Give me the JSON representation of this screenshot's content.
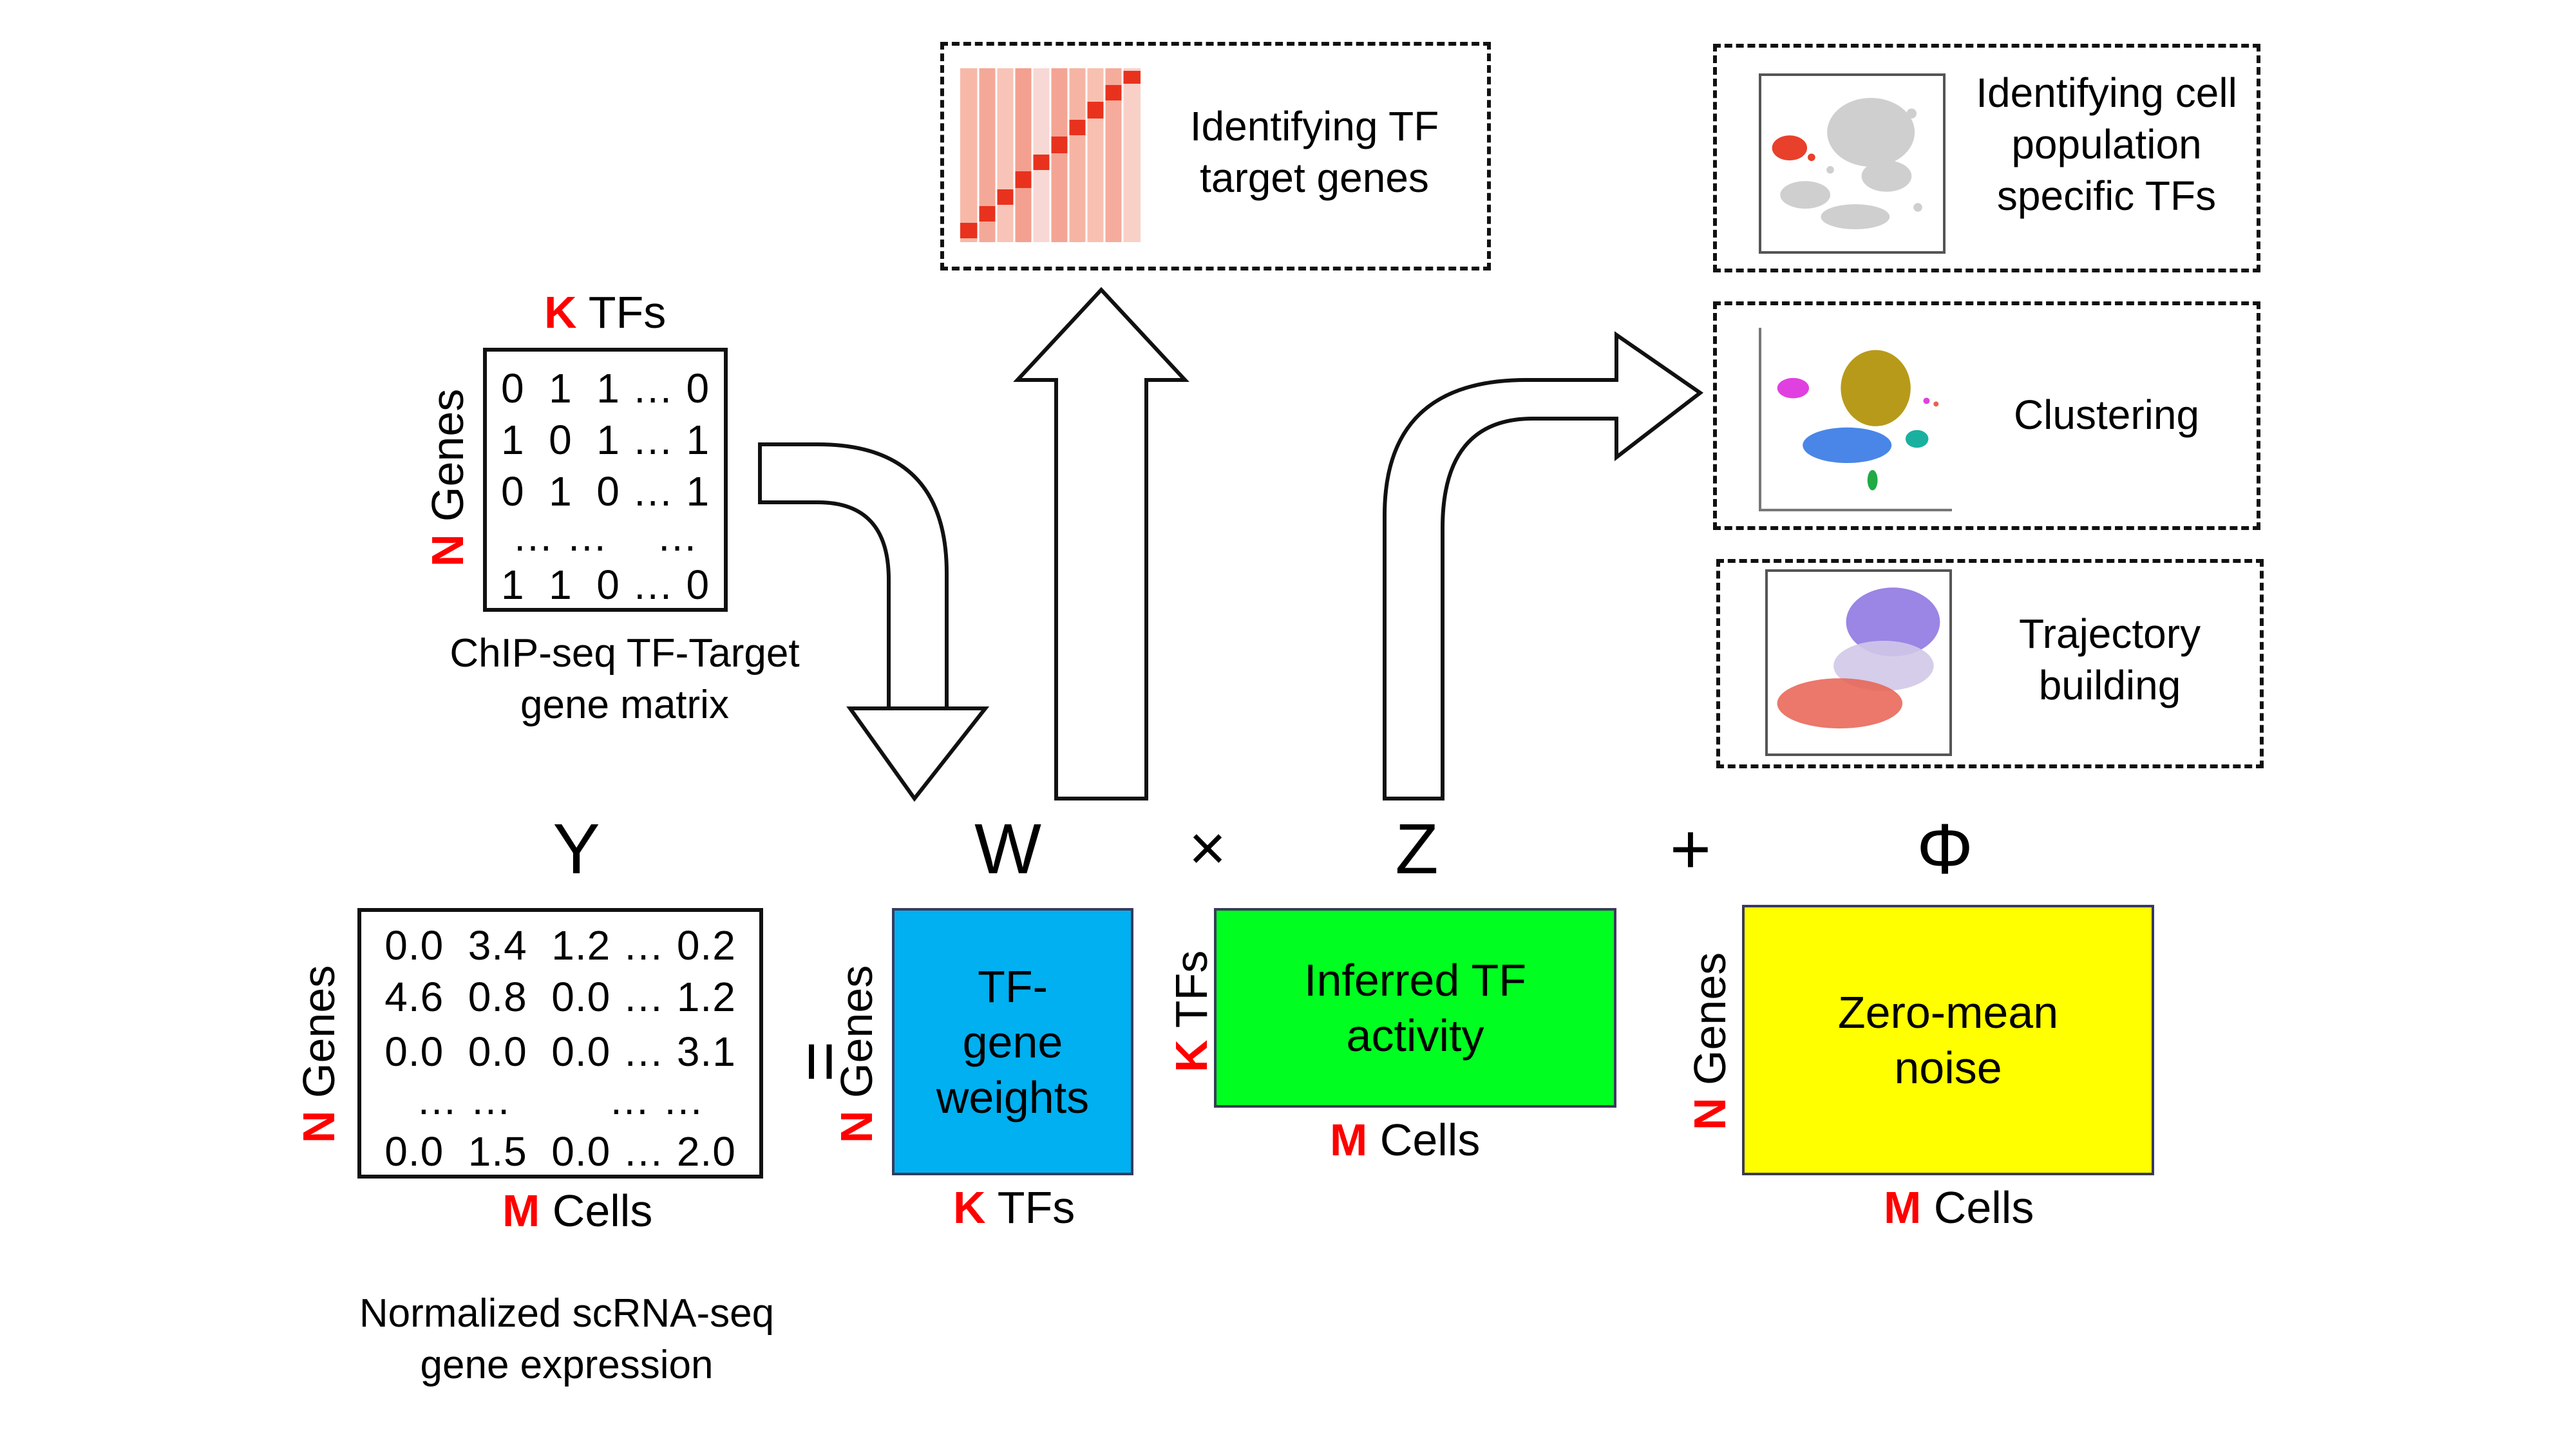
{
  "chip": {
    "top_k": "K",
    "top_tfs": "TFs",
    "side_n": "N",
    "side_genes": "Genes",
    "rows": [
      "0  1  1 … 0",
      "1  0  1 … 1",
      "0  1  0 … 1",
      "… …    …",
      "1  1  0 … 0"
    ],
    "caption_line1": "ChIP-seq TF-Target",
    "caption_line2": "gene matrix"
  },
  "equation": {
    "y": "Y",
    "w": "W",
    "times": "×",
    "z": "Z",
    "plus": "+",
    "phi": "Φ",
    "equals": "="
  },
  "y_matrix": {
    "rows": [
      "0.0  3.4  1.2 … 0.2",
      "4.6  0.8  0.0 … 1.2",
      "0.0  0.0  0.0 … 3.1",
      "… …        … …",
      "0.0  1.5  0.0 … 2.0"
    ],
    "side_n": "N",
    "side_genes": "Genes",
    "bottom_m": "M",
    "bottom_cells": "Cells",
    "caption_line1": "Normalized scRNA-seq",
    "caption_line2": "gene expression"
  },
  "w_box": {
    "line1": "TF-",
    "line2": "gene",
    "line3": "weights",
    "side_n": "N",
    "side_genes": "Genes",
    "bottom_k": "K",
    "bottom_tfs": "TFs",
    "color": "#00b0f0"
  },
  "z_box": {
    "line1": "Inferred TF",
    "line2": "activity",
    "side_k": "K",
    "side_tfs": "TFs",
    "bottom_m": "M",
    "bottom_cells": "Cells",
    "color": "#00ff21"
  },
  "phi_box": {
    "line1": "Zero-mean",
    "line2": "noise",
    "side_n": "N",
    "side_genes": "Genes",
    "bottom_m": "M",
    "bottom_cells": "Cells",
    "color": "#ffff00"
  },
  "panels": {
    "target_line1": "Identifying TF",
    "target_line2": "target genes",
    "population_line1": "Identifying cell",
    "population_line2": "population",
    "population_line3": "specific TFs",
    "clustering": "Clustering",
    "trajectory_line1": "Trajectory",
    "trajectory_line2": "building"
  },
  "colors": {
    "accent_red": "#ff0000",
    "heatmap_red": "#e8321e",
    "cluster_gold": "#b89a1a",
    "cluster_blue": "#4a86e8",
    "cluster_pink": "#e040e0",
    "cluster_teal": "#1ab0a0",
    "cluster_green": "#22aa44",
    "traj_purple": "#8a70e0",
    "traj_red": "#e86050"
  }
}
